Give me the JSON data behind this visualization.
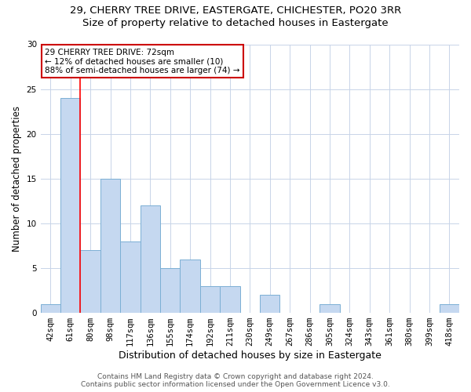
{
  "title1": "29, CHERRY TREE DRIVE, EASTERGATE, CHICHESTER, PO20 3RR",
  "title2": "Size of property relative to detached houses in Eastergate",
  "xlabel": "Distribution of detached houses by size in Eastergate",
  "ylabel": "Number of detached properties",
  "categories": [
    "42sqm",
    "61sqm",
    "80sqm",
    "98sqm",
    "117sqm",
    "136sqm",
    "155sqm",
    "174sqm",
    "192sqm",
    "211sqm",
    "230sqm",
    "249sqm",
    "267sqm",
    "286sqm",
    "305sqm",
    "324sqm",
    "343sqm",
    "361sqm",
    "380sqm",
    "399sqm",
    "418sqm"
  ],
  "values": [
    1,
    24,
    7,
    15,
    8,
    12,
    5,
    6,
    3,
    3,
    0,
    2,
    0,
    0,
    1,
    0,
    0,
    0,
    0,
    0,
    1
  ],
  "bar_color": "#c5d8f0",
  "bar_edge_color": "#7bafd4",
  "red_line_x": 1.5,
  "annotation_text": "29 CHERRY TREE DRIVE: 72sqm\n← 12% of detached houses are smaller (10)\n88% of semi-detached houses are larger (74) →",
  "ylim": [
    0,
    30
  ],
  "yticks": [
    0,
    5,
    10,
    15,
    20,
    25,
    30
  ],
  "footer1": "Contains HM Land Registry data © Crown copyright and database right 2024.",
  "footer2": "Contains public sector information licensed under the Open Government Licence v3.0.",
  "bg_color": "#ffffff",
  "grid_color": "#c8d4e8",
  "annotation_box_color": "#ffffff",
  "annotation_box_edge": "#cc0000",
  "title1_fontsize": 9.5,
  "title2_fontsize": 9.5,
  "xlabel_fontsize": 9,
  "ylabel_fontsize": 8.5,
  "tick_fontsize": 7.5,
  "footer_fontsize": 6.5,
  "ann_fontsize": 7.5
}
